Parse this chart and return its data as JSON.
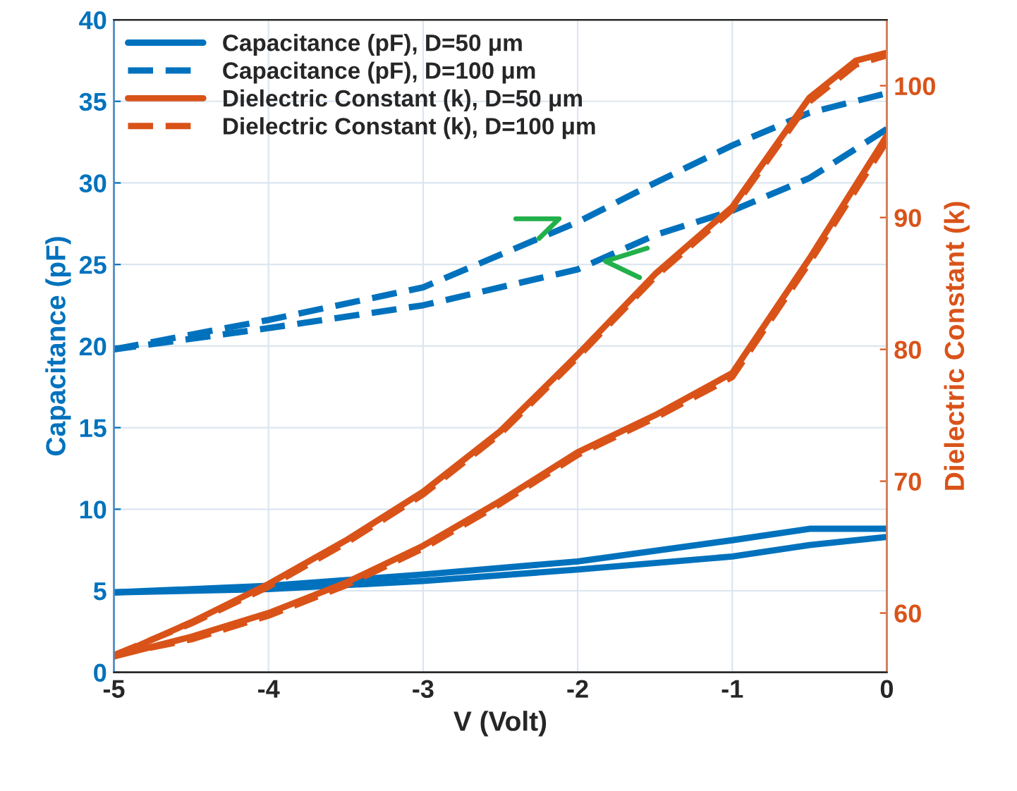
{
  "chart_data": {
    "type": "line",
    "xlabel": "V (Volt)",
    "ylabel": "Capacitance (pF)",
    "y2label": "Dielectric Constant (k)",
    "xlim": [
      -5,
      0
    ],
    "xticks": [
      -5,
      -4,
      -3,
      -2,
      -1,
      0
    ],
    "ylim": [
      0,
      40
    ],
    "yticks": [
      0,
      5,
      10,
      15,
      20,
      25,
      30,
      35,
      40
    ],
    "y2lim": [
      55.5,
      105.0
    ],
    "y2ticks": [
      60,
      70,
      80,
      90,
      100
    ],
    "grid": true,
    "legend": "top left",
    "series": [
      {
        "name": "Capacitance (pF), D=50 μm",
        "color": "#0072bd",
        "line_style": "solid",
        "x": [
          -5,
          -4,
          -3,
          -2,
          -1,
          -0.5,
          0
        ],
        "values": [
          4.9,
          5.3,
          6.0,
          6.8,
          8.1,
          8.8,
          8.8
        ]
      },
      {
        "color": "#0072bd",
        "line_style": "solid",
        "x": [
          0,
          -0.5,
          -1,
          -2,
          -3,
          -4,
          -5
        ],
        "values": [
          8.3,
          7.8,
          7.1,
          6.3,
          5.6,
          5.1,
          4.9
        ]
      },
      {
        "name": "Capacitance (pF), D=100 μm",
        "color": "#0072bd",
        "line_style": "dashed",
        "x": [
          -5,
          -4,
          -3,
          -2,
          -1.5,
          -1,
          -0.5,
          0
        ],
        "values": [
          19.8,
          21.6,
          23.6,
          27.6,
          30.0,
          32.3,
          34.3,
          35.5
        ]
      },
      {
        "color": "#0072bd",
        "line_style": "dashed",
        "x": [
          0,
          -0.5,
          -1,
          -1.5,
          -2,
          -3,
          -4,
          -5
        ],
        "values": [
          33.3,
          30.3,
          28.3,
          26.8,
          24.7,
          22.5,
          21.1,
          19.8
        ]
      },
      {
        "name": "Dielectric Constant (k), D=50 μm",
        "color": "#d95319",
        "line_style": "solid",
        "axis": "y2",
        "x": [
          -5,
          -4.5,
          -4,
          -3.5,
          -3,
          -2.5,
          -2,
          -1.5,
          -1,
          -0.5,
          -0.2,
          0
        ],
        "values": [
          56.7,
          59.3,
          62.2,
          65.5,
          69.2,
          73.8,
          79.6,
          85.7,
          90.8,
          99.1,
          101.9,
          102.5
        ]
      },
      {
        "color": "#d95319",
        "line_style": "solid",
        "axis": "y2",
        "x": [
          0,
          -0.5,
          -1,
          -1.5,
          -2,
          -2.5,
          -3,
          -3.5,
          -4,
          -4.5,
          -5
        ],
        "values": [
          96.2,
          86.9,
          78.2,
          75.0,
          72.2,
          68.5,
          65.1,
          62.3,
          60.0,
          58.2,
          56.7
        ]
      },
      {
        "name": "Dielectric Constant (k), D=100 μm",
        "color": "#d95319",
        "line_style": "dashed",
        "axis": "y2",
        "x": [
          -5,
          -4.5,
          -4,
          -3.5,
          -3,
          -2.5,
          -2,
          -1.5,
          -1,
          -0.5,
          -0.2,
          0
        ],
        "values": [
          56.8,
          59.2,
          62.0,
          65.3,
          69.0,
          73.6,
          79.4,
          85.5,
          90.6,
          98.8,
          101.6,
          102.3
        ]
      },
      {
        "color": "#d95319",
        "line_style": "dashed",
        "axis": "y2",
        "x": [
          0,
          -0.5,
          -1,
          -1.5,
          -2,
          -2.5,
          -3,
          -3.5,
          -4,
          -4.5,
          -5
        ],
        "values": [
          95.8,
          86.6,
          77.9,
          74.8,
          72.0,
          68.3,
          64.9,
          62.1,
          59.8,
          58.0,
          56.8
        ]
      }
    ]
  }
}
